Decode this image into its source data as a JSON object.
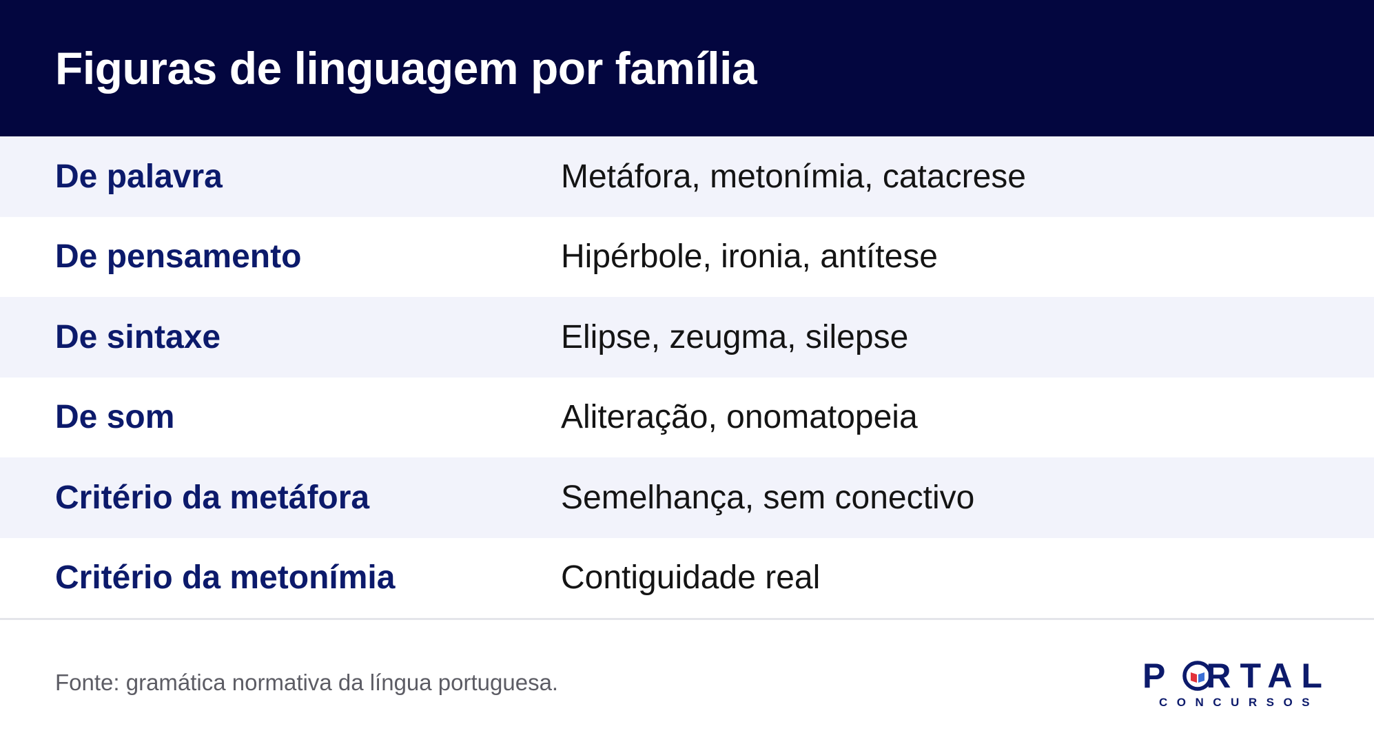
{
  "header": {
    "title": "Figuras de linguagem por família"
  },
  "table": {
    "rows": [
      {
        "label": "De palavra",
        "value": "Metáfora, metonímia, catacrese"
      },
      {
        "label": "De pensamento",
        "value": "Hipérbole, ironia, antítese"
      },
      {
        "label": "De sintaxe",
        "value": "Elipse, zeugma, silepse"
      },
      {
        "label": "De som",
        "value": "Aliteração, onomatopeia"
      },
      {
        "label": "Critério da metáfora",
        "value": "Semelhança, sem conectivo"
      },
      {
        "label": "Critério da metonímia",
        "value": "Contiguidade real"
      }
    ]
  },
  "footer": {
    "source": "Fonte: gramática normativa da língua portuguesa."
  },
  "logo": {
    "text_before": "P",
    "text_after": "RTAL",
    "subtext": "CONCURSOS",
    "colors": {
      "navy": "#0c1a6b",
      "red": "#e2323b",
      "blue": "#3b6fd6"
    }
  },
  "colors": {
    "header_bg": "#03063f",
    "label_text": "#0c1a6b",
    "row_alt_bg": "#f2f3fb"
  }
}
